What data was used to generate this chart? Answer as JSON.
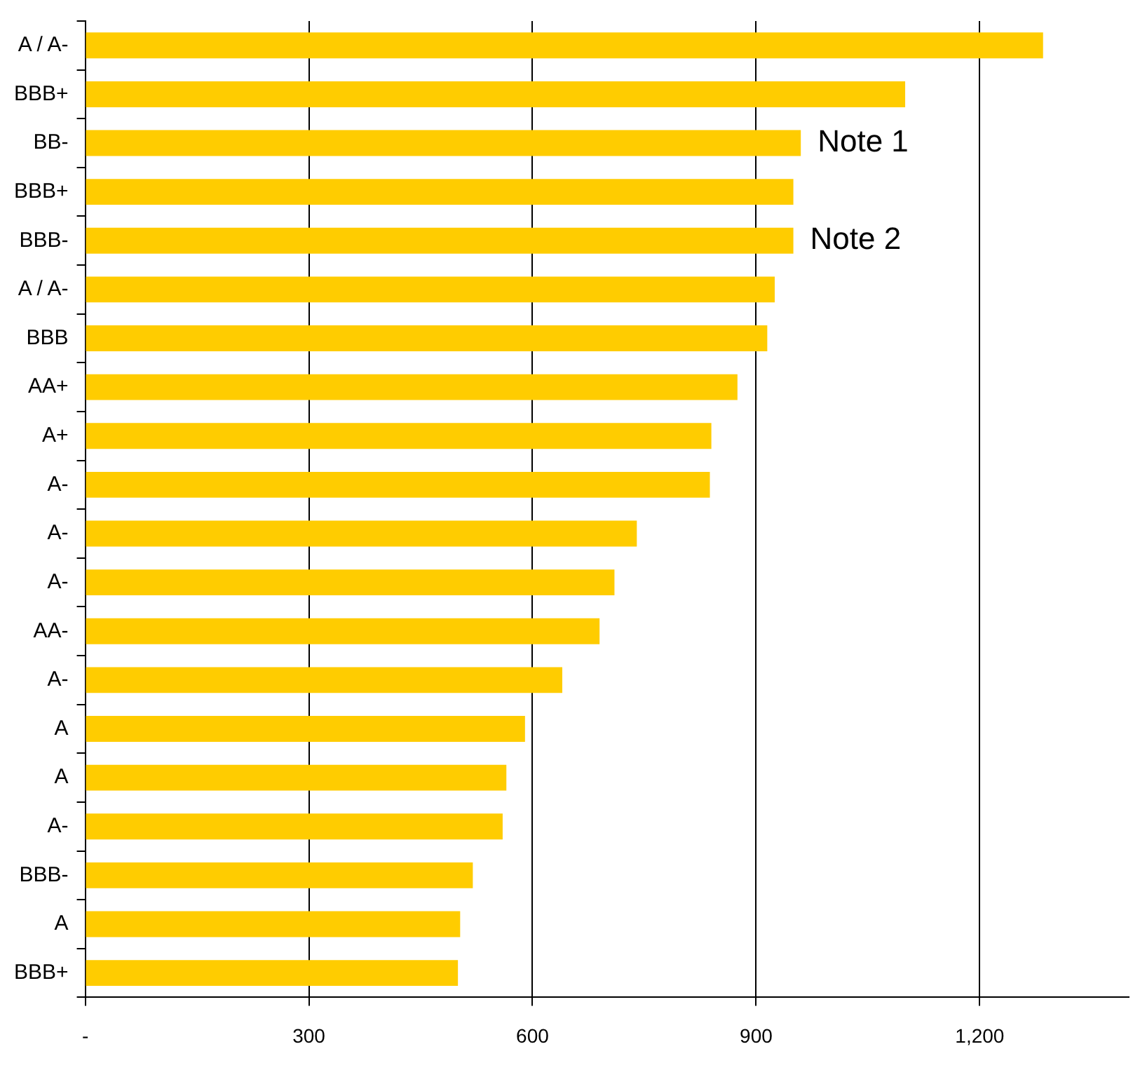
{
  "chart_data": {
    "type": "bar",
    "orientation": "horizontal",
    "categories": [
      "A / A-",
      "BBB+",
      "BB-",
      "BBB+",
      "BBB-",
      "A / A-",
      "BBB",
      "AA+",
      "A+",
      "A-",
      "A-",
      "A-",
      "AA-",
      "A-",
      "A",
      "A",
      "A-",
      "BBB-",
      "A",
      "BBB+"
    ],
    "values": [
      1285,
      1100,
      960,
      950,
      950,
      925,
      915,
      875,
      840,
      838,
      740,
      710,
      690,
      640,
      590,
      565,
      560,
      520,
      503,
      500
    ],
    "color": "#ffcc00",
    "xlim": [
      0,
      1400
    ],
    "xticks": [
      {
        "value": 0,
        "label": "-"
      },
      300,
      600,
      900,
      {
        "value": 1200,
        "label": "1,200"
      }
    ],
    "grid": "x",
    "legend": false,
    "annotations": [
      {
        "text": "Note 1",
        "x": 960,
        "y": "BB-"
      },
      {
        "text": "Note 2",
        "x": 950,
        "y": "BBB-"
      }
    ]
  }
}
